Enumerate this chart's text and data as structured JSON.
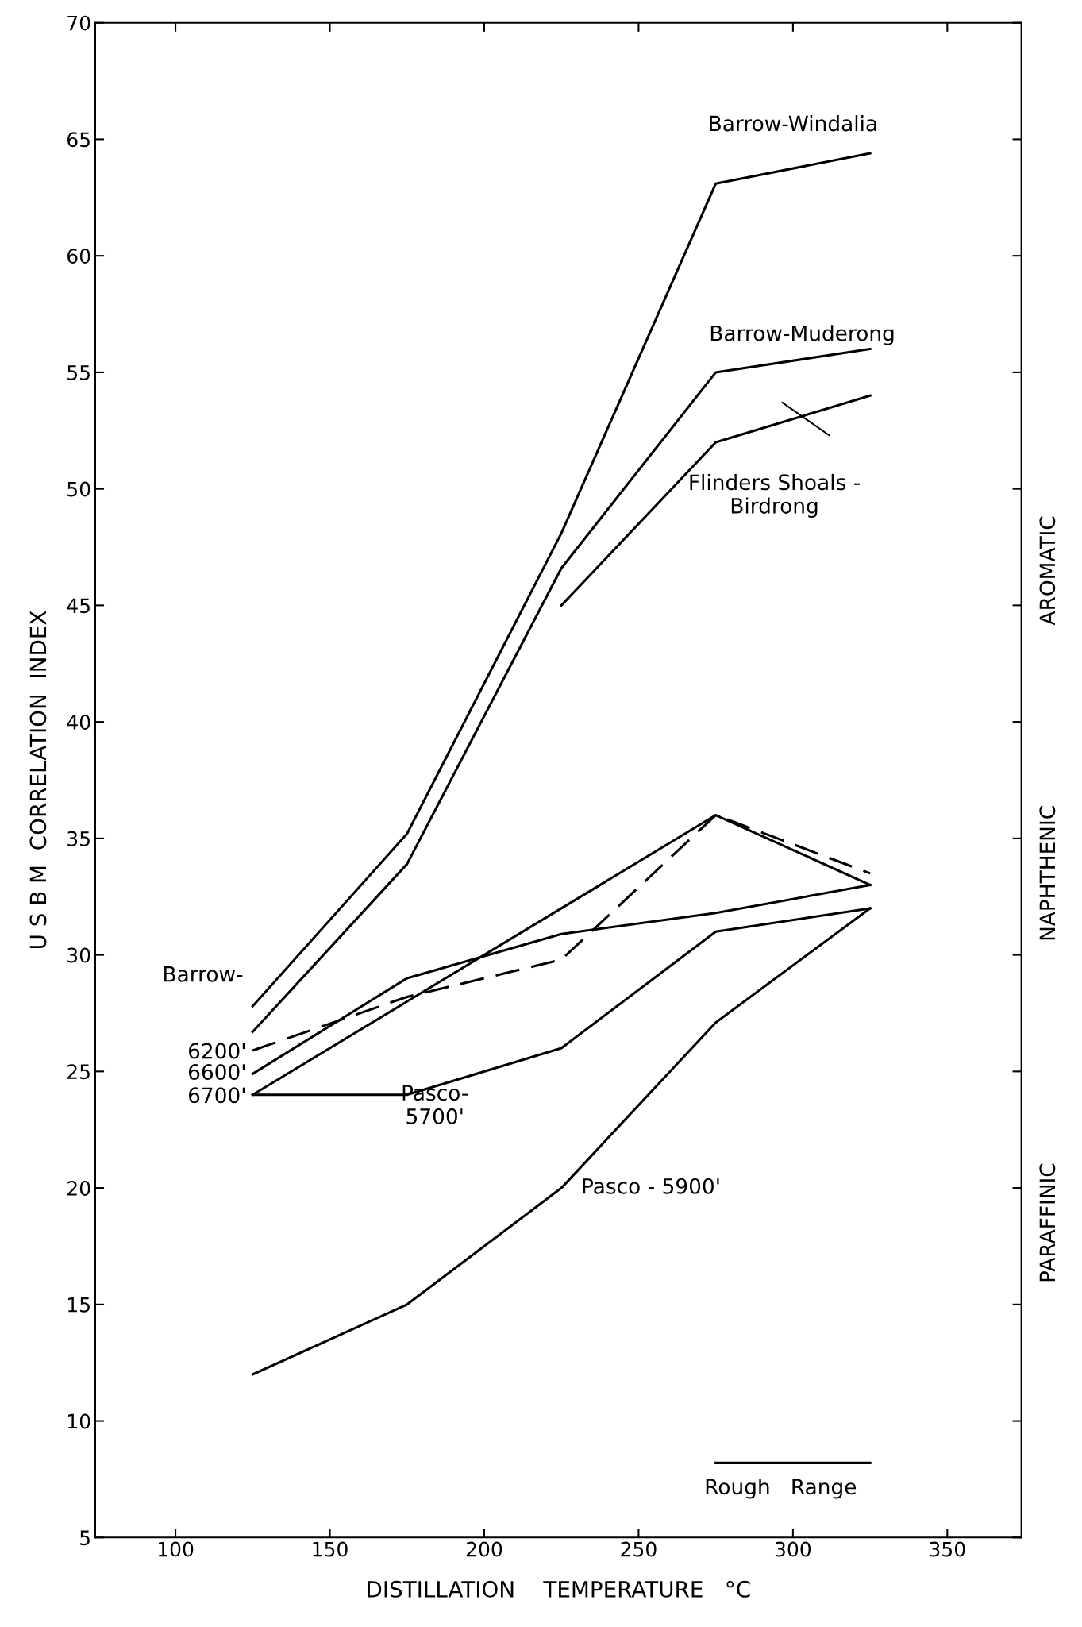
{
  "chart_data": {
    "type": "line",
    "xlabel": "DISTILLATION    TEMPERATURE   °C",
    "ylabel": "U S B M  CORRELATION  INDEX",
    "x": [
      125,
      175,
      225,
      275,
      325
    ],
    "xlim": [
      74,
      374
    ],
    "xticks": [
      100,
      150,
      200,
      250,
      300,
      350
    ],
    "ylim": [
      5,
      70
    ],
    "yticks": [
      5,
      10,
      15,
      20,
      25,
      30,
      35,
      40,
      45,
      50,
      55,
      60,
      65,
      70
    ],
    "grid": false,
    "marker": "none",
    "series": [
      {
        "name": "Barrow-Windalia",
        "color": "#000000",
        "line_style": "solid",
        "values": [
          27.8,
          35.2,
          48.1,
          63.1,
          64.4
        ]
      },
      {
        "name": "Barrow-Muderong",
        "color": "#000000",
        "line_style": "solid",
        "values": [
          26.7,
          33.9,
          46.6,
          55.0,
          56.0
        ]
      },
      {
        "name": "Flinders Shoals -\nBirdrong",
        "color": "#000000",
        "line_style": "solid",
        "values": [
          null,
          null,
          45.0,
          52.0,
          54.0
        ]
      },
      {
        "name": "6200'",
        "color": "#000000",
        "line_style": "dashed",
        "values": [
          25.9,
          28.2,
          29.8,
          36.0,
          33.5
        ]
      },
      {
        "name": "6600'",
        "color": "#000000",
        "line_style": "solid",
        "values": [
          24.9,
          29.0,
          30.9,
          31.8,
          33.0
        ]
      },
      {
        "name": "6700'",
        "color": "#000000",
        "line_style": "solid",
        "values": [
          24.0,
          28.0,
          32.0,
          36.0,
          33.0
        ]
      },
      {
        "name": "Pasco-\n5700'",
        "color": "#000000",
        "line_style": "solid",
        "values": [
          24.0,
          24.0,
          26.0,
          31.0,
          32.0
        ]
      },
      {
        "name": "Pasco - 5900'",
        "color": "#000000",
        "line_style": "solid",
        "values": [
          12.0,
          15.0,
          20.0,
          27.1,
          32.0
        ]
      },
      {
        "name": "Rough   Range",
        "color": "#000000",
        "line_style": "solid",
        "x": [
          275,
          325
        ],
        "values": [
          8.2,
          8.2
        ]
      }
    ],
    "annotations": [
      "Barrow-",
      "AROMATIC",
      "NAPHTHENIC",
      "PARAFFINIC"
    ]
  }
}
